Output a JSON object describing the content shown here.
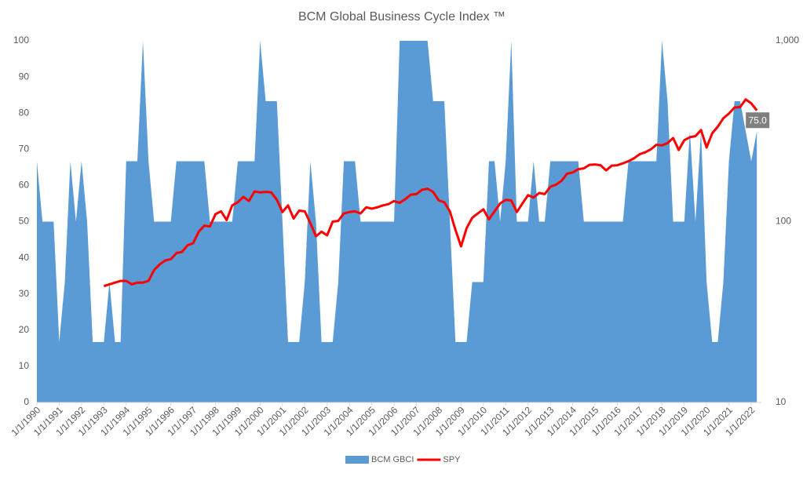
{
  "chart_data": {
    "type": "area-line",
    "title": "BCM Global Business Cycle Index ™",
    "x": [
      "1/1/1990",
      "4/1/1990",
      "7/1/1990",
      "10/1/1990",
      "1/1/1991",
      "4/1/1991",
      "7/1/1991",
      "10/1/1991",
      "1/1/1992",
      "4/1/1992",
      "7/1/1992",
      "10/1/1992",
      "1/1/1993",
      "4/1/1993",
      "7/1/1993",
      "10/1/1993",
      "1/1/1994",
      "4/1/1994",
      "7/1/1994",
      "10/1/1994",
      "1/1/1995",
      "4/1/1995",
      "7/1/1995",
      "10/1/1995",
      "1/1/1996",
      "4/1/1996",
      "7/1/1996",
      "10/1/1996",
      "1/1/1997",
      "4/1/1997",
      "7/1/1997",
      "10/1/1997",
      "1/1/1998",
      "4/1/1998",
      "7/1/1998",
      "10/1/1998",
      "1/1/1999",
      "4/1/1999",
      "7/1/1999",
      "10/1/1999",
      "1/1/2000",
      "4/1/2000",
      "7/1/2000",
      "10/1/2000",
      "1/1/2001",
      "4/1/2001",
      "7/1/2001",
      "10/1/2001",
      "1/1/2002",
      "4/1/2002",
      "7/1/2002",
      "10/1/2002",
      "1/1/2003",
      "4/1/2003",
      "7/1/2003",
      "10/1/2003",
      "1/1/2004",
      "4/1/2004",
      "7/1/2004",
      "10/1/2004",
      "1/1/2005",
      "4/1/2005",
      "7/1/2005",
      "10/1/2005",
      "1/1/2006",
      "4/1/2006",
      "7/1/2006",
      "10/1/2006",
      "1/1/2007",
      "4/1/2007",
      "7/1/2007",
      "10/1/2007",
      "1/1/2008",
      "4/1/2008",
      "7/1/2008",
      "10/1/2008",
      "1/1/2009",
      "4/1/2009",
      "7/1/2009",
      "10/1/2009",
      "1/1/2010",
      "4/1/2010",
      "7/1/2010",
      "10/1/2010",
      "1/1/2011",
      "4/1/2011",
      "7/1/2011",
      "10/1/2011",
      "1/1/2012",
      "4/1/2012",
      "7/1/2012",
      "10/1/2012",
      "1/1/2013",
      "4/1/2013",
      "7/1/2013",
      "10/1/2013",
      "1/1/2014",
      "4/1/2014",
      "7/1/2014",
      "10/1/2014",
      "1/1/2015",
      "4/1/2015",
      "7/1/2015",
      "10/1/2015",
      "1/1/2016",
      "4/1/2016",
      "7/1/2016",
      "10/1/2016",
      "1/1/2017",
      "4/1/2017",
      "7/1/2017",
      "10/1/2017",
      "1/1/2018",
      "4/1/2018",
      "7/1/2018",
      "10/1/2018",
      "1/1/2019",
      "4/1/2019",
      "7/1/2019",
      "10/1/2019",
      "1/1/2020",
      "4/1/2020",
      "7/1/2020",
      "10/1/2020",
      "1/1/2021",
      "4/1/2021",
      "7/1/2021",
      "10/1/2021",
      "1/1/2022",
      "4/1/2022"
    ],
    "series": [
      {
        "name": "BCM GBCI",
        "kind": "area",
        "color": "#5b9bd5",
        "axis": "y",
        "values": [
          66.7,
          50,
          50,
          50,
          16.7,
          33.3,
          66.7,
          50,
          66.7,
          50,
          16.7,
          16.7,
          16.7,
          33.3,
          16.7,
          16.7,
          66.7,
          66.7,
          66.7,
          100,
          66.7,
          50,
          50,
          50,
          50,
          66.7,
          66.7,
          66.7,
          66.7,
          66.7,
          66.7,
          50,
          50,
          50,
          50,
          50,
          66.7,
          66.7,
          66.7,
          66.7,
          100,
          83.3,
          83.3,
          83.3,
          50,
          16.7,
          16.7,
          16.7,
          33.3,
          66.7,
          50,
          16.7,
          16.7,
          16.7,
          33.3,
          66.7,
          66.7,
          66.7,
          50,
          50,
          50,
          50,
          50,
          50,
          50,
          100,
          100,
          100,
          100,
          100,
          100,
          83.3,
          83.3,
          83.3,
          50,
          16.7,
          16.7,
          16.7,
          33.3,
          33.3,
          33.3,
          66.7,
          66.7,
          50,
          66.7,
          100,
          50,
          50,
          50,
          66.7,
          50,
          50,
          66.7,
          66.7,
          66.7,
          66.7,
          66.7,
          66.7,
          50,
          50,
          50,
          50,
          50,
          50,
          50,
          50,
          66.7,
          66.7,
          66.7,
          66.7,
          66.7,
          66.7,
          100,
          83.3,
          50,
          50,
          50,
          75,
          50,
          75,
          33.3,
          16.7,
          16.7,
          33.3,
          66.7,
          83.3,
          83.3,
          75,
          66.7,
          75
        ]
      },
      {
        "name": "SPY",
        "kind": "line",
        "color": "#ff0000",
        "axis": "y2",
        "values": [
          null,
          null,
          null,
          null,
          null,
          null,
          null,
          null,
          null,
          null,
          null,
          null,
          44,
          45,
          46,
          47,
          47,
          45,
          46,
          46,
          47,
          54,
          58,
          61,
          62,
          67,
          68,
          74,
          76,
          88,
          95,
          94,
          110,
          114,
          102,
          123,
          128,
          137,
          130,
          147,
          145,
          146,
          145,
          132,
          113,
          123,
          104,
          115,
          114,
          98,
          83,
          88,
          84,
          100,
          101,
          111,
          113,
          114,
          111,
          120,
          118,
          120,
          123,
          125,
          130,
          127,
          133,
          141,
          142,
          150,
          152,
          146,
          131,
          128,
          114,
          90,
          73,
          92,
          105,
          111,
          117,
          103,
          114,
          126,
          132,
          131,
          113,
          126,
          140,
          136,
          144,
          142,
          156,
          160,
          168,
          184,
          187,
          195,
          197,
          206,
          207,
          205,
          192,
          204,
          205,
          210,
          216,
          224,
          236,
          242,
          251,
          266,
          264,
          272,
          290,
          249,
          282,
          293,
          297,
          321,
          257,
          308,
          335,
          373,
          396,
          428,
          430,
          474,
          451,
          412
        ]
      }
    ],
    "annotations": [
      {
        "text": "75.0",
        "x": "4/1/2022",
        "y": 75
      }
    ],
    "xticks": [
      "1/1/1990",
      "1/1/1991",
      "1/1/1992",
      "1/1/1993",
      "1/1/1994",
      "1/1/1995",
      "1/1/1996",
      "1/1/1997",
      "1/1/1998",
      "1/1/1999",
      "1/1/2000",
      "1/1/2001",
      "1/1/2002",
      "1/1/2003",
      "1/1/2004",
      "1/1/2005",
      "1/1/2006",
      "1/1/2007",
      "1/1/2008",
      "1/1/2009",
      "1/1/2010",
      "1/1/2011",
      "1/1/2012",
      "1/1/2013",
      "1/1/2014",
      "1/1/2015",
      "1/1/2016",
      "1/1/2017",
      "1/1/2018",
      "1/1/2019",
      "1/1/2020",
      "1/1/2021",
      "1/1/2022"
    ],
    "ylim": [
      0,
      100
    ],
    "yticks": [
      0,
      10,
      20,
      30,
      40,
      50,
      60,
      70,
      80,
      90,
      100
    ],
    "y2lim": [
      10,
      1000
    ],
    "y2ticks": [
      10,
      100,
      {
        "value": 1000,
        "label": "1,000"
      }
    ],
    "y2log": true,
    "legend": "bottom",
    "grid": false
  }
}
